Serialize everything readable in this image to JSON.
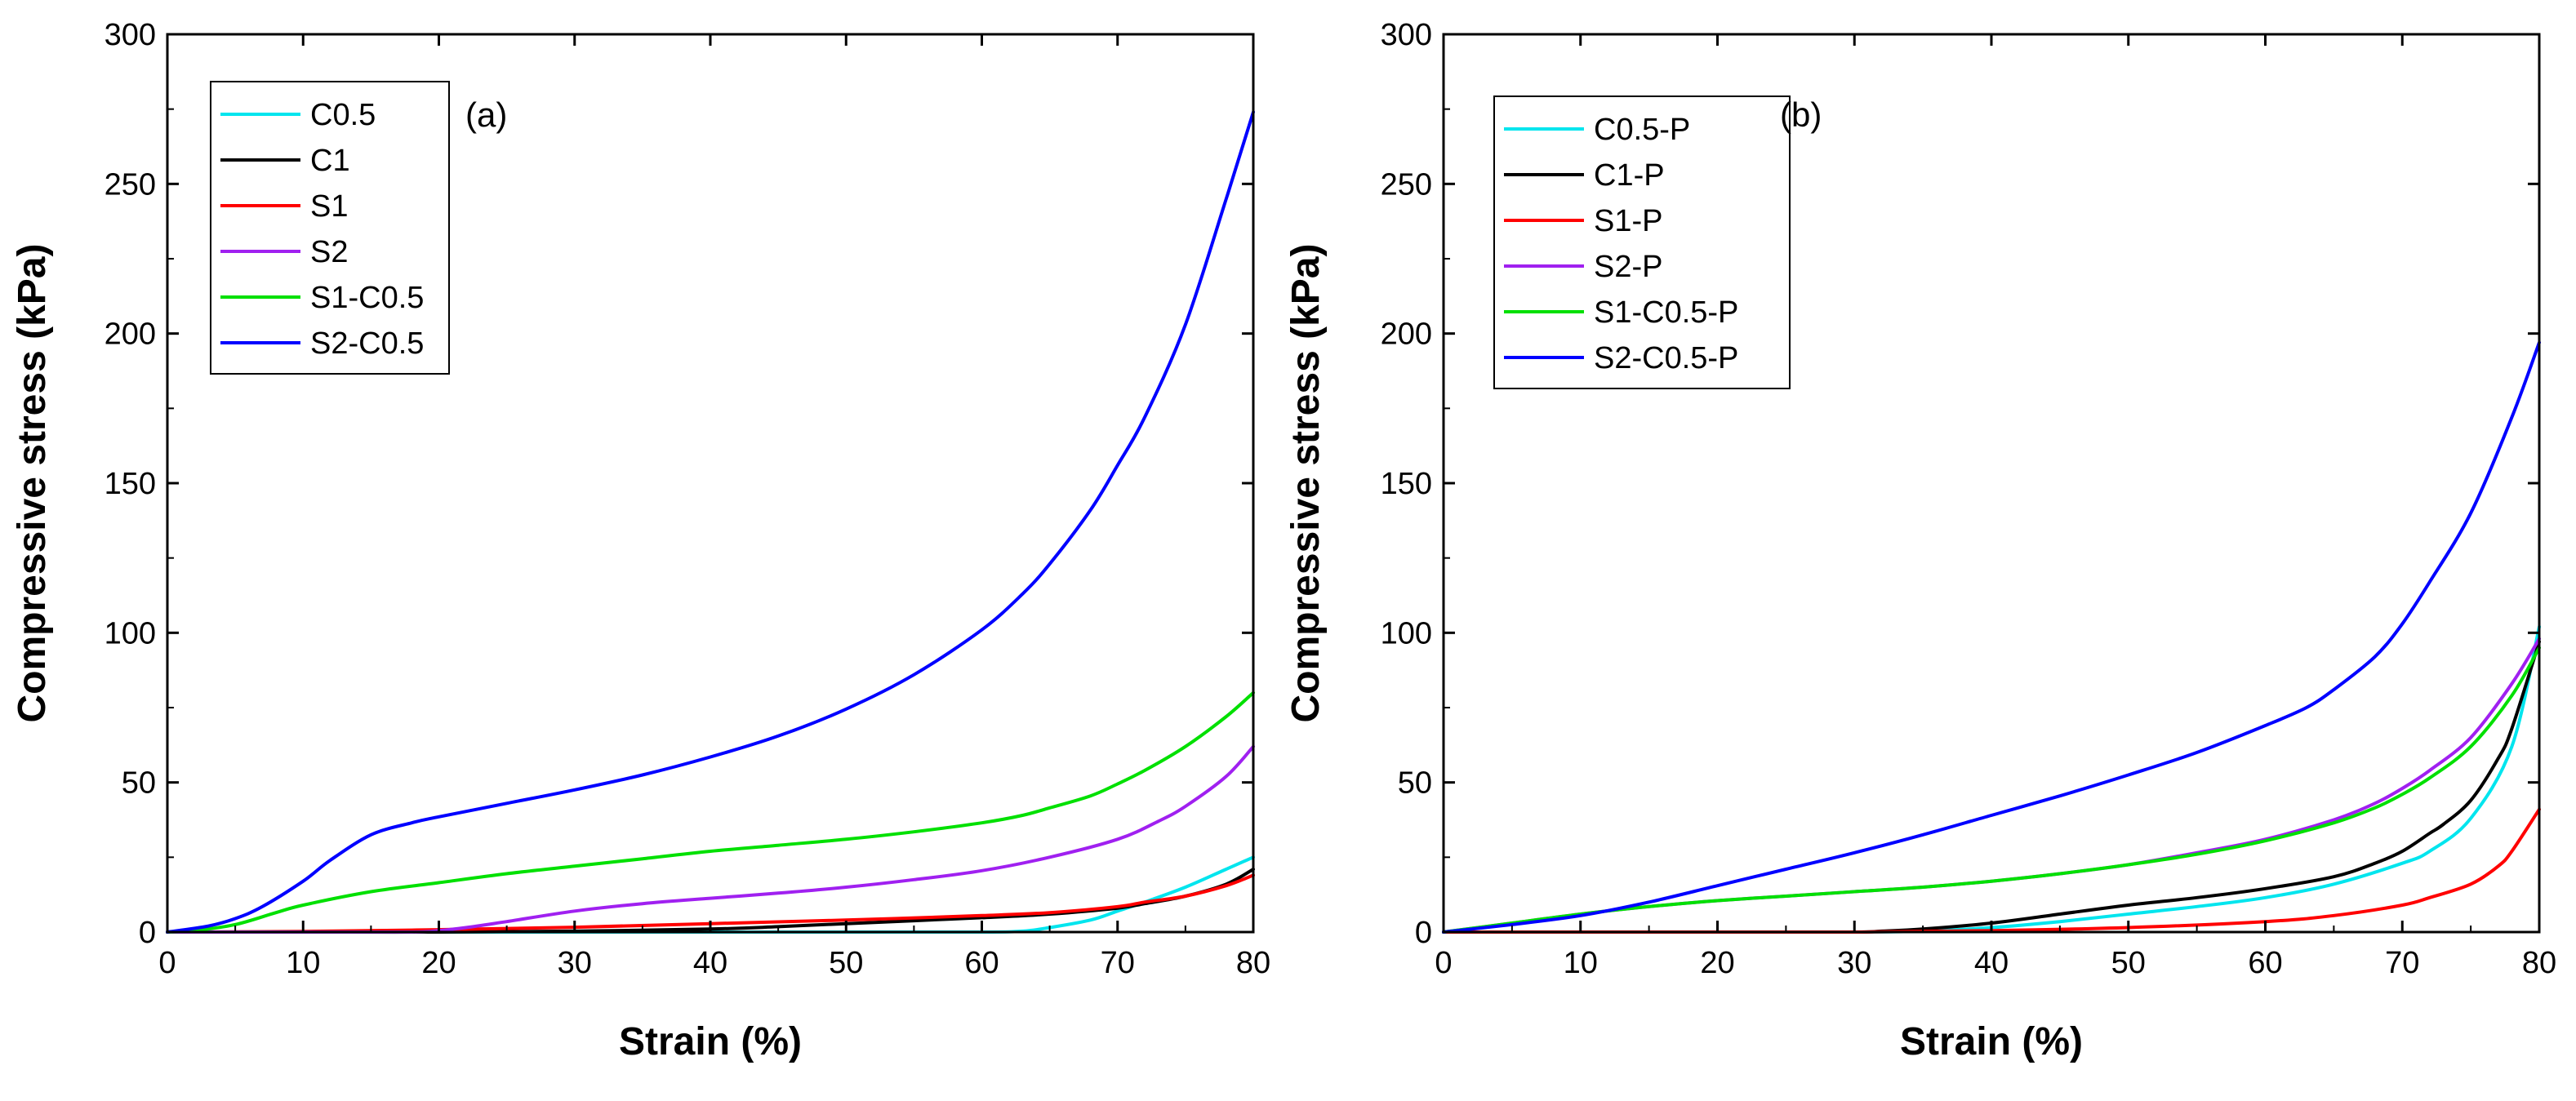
{
  "chart_data": [
    {
      "type": "line",
      "panel_label": "(a)",
      "xlabel": "Strain (%)",
      "ylabel": "Compressive stress (kPa)",
      "xlim": [
        0,
        80
      ],
      "ylim": [
        0,
        300
      ],
      "xticks": [
        0,
        10,
        20,
        30,
        40,
        50,
        60,
        70,
        80
      ],
      "yticks": [
        0,
        50,
        100,
        150,
        200,
        250,
        300
      ],
      "legend_position": "top-left",
      "series": [
        {
          "name": "C0.5",
          "color": "#00E5EE",
          "x": [
            0,
            10,
            20,
            30,
            40,
            50,
            60,
            63,
            65,
            68,
            70,
            72,
            75,
            78,
            80
          ],
          "y": [
            0,
            0,
            0,
            0,
            0,
            0,
            0,
            0.3,
            1.5,
            4,
            7,
            10,
            15,
            21,
            25
          ]
        },
        {
          "name": "C1",
          "color": "#000000",
          "x": [
            0,
            10,
            20,
            30,
            40,
            45,
            50,
            55,
            60,
            65,
            70,
            72,
            75,
            78,
            80
          ],
          "y": [
            0,
            0,
            0,
            0.3,
            1,
            1.8,
            2.8,
            3.8,
            4.8,
            6,
            8,
            9.5,
            12,
            16,
            21
          ]
        },
        {
          "name": "S1",
          "color": "#FF0000",
          "x": [
            0,
            10,
            20,
            30,
            40,
            50,
            60,
            65,
            70,
            72,
            75,
            78,
            80
          ],
          "y": [
            0,
            0.2,
            0.8,
            1.6,
            2.8,
            4,
            5.5,
            6.5,
            8.5,
            10,
            12,
            15.5,
            19
          ]
        },
        {
          "name": "S2",
          "color": "#A020F0",
          "x": [
            0,
            10,
            18,
            20,
            22,
            25,
            30,
            35,
            40,
            45,
            50,
            55,
            60,
            65,
            70,
            73,
            75,
            78,
            80
          ],
          "y": [
            0,
            0,
            0,
            0.5,
            1.5,
            3.5,
            7,
            9.5,
            11.3,
            13,
            15,
            17.5,
            20.5,
            25,
            31,
            37,
            42,
            52,
            62
          ]
        },
        {
          "name": "S1-C0.5",
          "color": "#00E000",
          "x": [
            0,
            2,
            5,
            8,
            10,
            15,
            20,
            25,
            30,
            35,
            40,
            45,
            50,
            55,
            60,
            63,
            65,
            68,
            70,
            72,
            75,
            78,
            80
          ],
          "y": [
            0,
            0.5,
            2.5,
            6.5,
            9,
            13.5,
            16.5,
            19.5,
            22,
            24.5,
            27,
            29,
            31,
            33.5,
            36.5,
            39,
            41.5,
            45.5,
            49.5,
            54,
            62,
            72,
            80
          ]
        },
        {
          "name": "S2-C0.5",
          "color": "#0000FF",
          "x": [
            0,
            3,
            5,
            7,
            10,
            12,
            15,
            18,
            20,
            25,
            30,
            35,
            40,
            45,
            50,
            55,
            60,
            63,
            65,
            68,
            70,
            72,
            75,
            78,
            80
          ],
          "y": [
            0,
            2,
            4.5,
            8.5,
            17,
            24,
            32.5,
            36.5,
            38.5,
            43,
            47.5,
            52.5,
            58.5,
            65.5,
            74.5,
            86,
            101,
            113,
            123,
            141,
            156,
            172,
            203,
            245,
            274
          ]
        }
      ]
    },
    {
      "type": "line",
      "panel_label": "(b)",
      "xlabel": "Strain (%)",
      "ylabel": "Compressive stress (kPa)",
      "xlim": [
        0,
        80
      ],
      "ylim": [
        0,
        300
      ],
      "xticks": [
        0,
        10,
        20,
        30,
        40,
        50,
        60,
        70,
        80
      ],
      "yticks": [
        0,
        50,
        100,
        150,
        200,
        250,
        300
      ],
      "legend_position": "top-left",
      "series": [
        {
          "name": "C0.5-P",
          "color": "#00E5EE",
          "x": [
            0,
            10,
            20,
            30,
            35,
            40,
            45,
            50,
            55,
            60,
            65,
            70,
            72,
            75,
            78,
            80
          ],
          "y": [
            0,
            0,
            0,
            0,
            0.3,
            1.5,
            3.5,
            6,
            8.5,
            11.5,
            16,
            23,
            27,
            38,
            62,
            102
          ]
        },
        {
          "name": "C1-P",
          "color": "#000000",
          "x": [
            0,
            10,
            20,
            30,
            32,
            35,
            40,
            45,
            50,
            55,
            60,
            65,
            68,
            70,
            72,
            73,
            75,
            77,
            78,
            80
          ],
          "y": [
            0,
            0,
            0,
            0,
            0.3,
            1,
            3,
            6,
            9,
            11.5,
            14.5,
            18.5,
            23,
            27,
            33,
            36,
            44,
            58,
            68,
            97
          ]
        },
        {
          "name": "S1-P",
          "color": "#FF0000",
          "x": [
            0,
            10,
            20,
            30,
            40,
            50,
            60,
            65,
            70,
            72,
            75,
            77,
            78,
            80
          ],
          "y": [
            0,
            0,
            0,
            0,
            0.5,
            1.5,
            3.5,
            5.5,
            9,
            11.5,
            16,
            22,
            27,
            41
          ]
        },
        {
          "name": "S2-P",
          "color": "#A020F0",
          "x": [
            0,
            5,
            10,
            15,
            20,
            25,
            30,
            35,
            40,
            45,
            50,
            55,
            60,
            65,
            68,
            70,
            72,
            75,
            78,
            80
          ],
          "y": [
            0,
            3,
            6,
            8.5,
            10.5,
            12,
            13.5,
            15,
            17,
            19.5,
            22.5,
            26.5,
            31,
            37.5,
            43,
            48,
            54,
            65,
            83,
            98
          ]
        },
        {
          "name": "S1-C0.5-P",
          "color": "#00E000",
          "x": [
            0,
            5,
            10,
            15,
            20,
            25,
            30,
            35,
            40,
            45,
            50,
            55,
            60,
            65,
            68,
            70,
            72,
            75,
            78,
            80
          ],
          "y": [
            0,
            3,
            6,
            8.5,
            10.5,
            12,
            13.5,
            15,
            17,
            19.5,
            22.5,
            26,
            30.5,
            36.5,
            41.5,
            46,
            51.5,
            62,
            79,
            95
          ]
        },
        {
          "name": "S2-C0.5-P",
          "color": "#0000FF",
          "x": [
            0,
            5,
            10,
            15,
            20,
            25,
            30,
            35,
            40,
            45,
            50,
            55,
            60,
            63,
            65,
            68,
            70,
            72,
            75,
            78,
            80
          ],
          "y": [
            0,
            2.5,
            5.5,
            10,
            15.5,
            21,
            26.5,
            32.5,
            39,
            45.5,
            52.5,
            60,
            69,
            75,
            81,
            92,
            103,
            117,
            140,
            172,
            197
          ]
        }
      ]
    }
  ]
}
